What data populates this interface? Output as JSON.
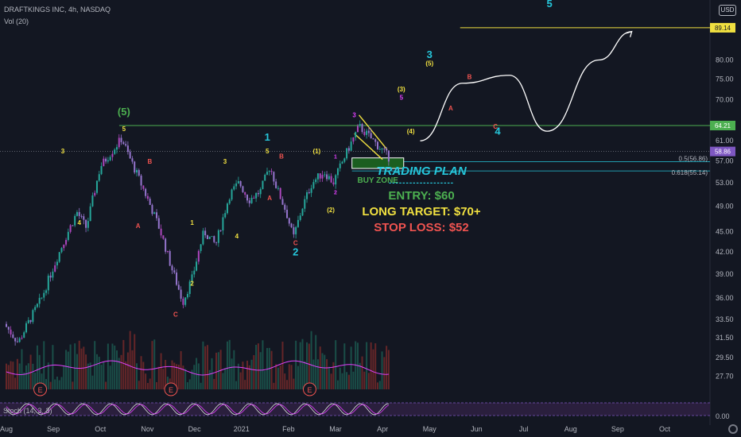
{
  "header": {
    "title": "DRAFTKINGS INC, 4h, NASDAQ",
    "volume_label": "Vol (20)",
    "currency": "USD"
  },
  "chart_data": {
    "type": "candlestick",
    "title": "DRAFTKINGS INC, 4h, NASDAQ",
    "x_ticks": [
      "Aug",
      "Sep",
      "Oct",
      "Nov",
      "Dec",
      "2021",
      "Feb",
      "Mar",
      "Apr",
      "May",
      "Jun",
      "Jul",
      "Aug",
      "Sep",
      "Oct"
    ],
    "y_ticks": [
      27.7,
      29.5,
      31.5,
      33.5,
      36.0,
      39.0,
      42.0,
      45.0,
      49.0,
      53.0,
      57.0,
      61.0,
      70.0,
      75.0,
      80.0
    ],
    "y_tick_labels": [
      "27.70",
      "29.50",
      "31.50",
      "33.50",
      "36.00",
      "39.00",
      "42.00",
      "45.00",
      "49.00",
      "53.00",
      "57.00",
      "61.00",
      "70.00",
      "75.00",
      "80.00"
    ],
    "price_path": [
      {
        "month": 0.0,
        "price": 33.0
      },
      {
        "month": 0.3,
        "price": 31.0
      },
      {
        "month": 0.8,
        "price": 36.0
      },
      {
        "month": 1.3,
        "price": 44.0
      },
      {
        "month": 1.55,
        "price": 48.0
      },
      {
        "month": 1.75,
        "price": 45.5
      },
      {
        "month": 2.05,
        "price": 56.0
      },
      {
        "month": 2.3,
        "price": 59.0
      },
      {
        "month": 2.5,
        "price": 61.5
      },
      {
        "month": 2.65,
        "price": 58.0
      },
      {
        "month": 2.9,
        "price": 53.0
      },
      {
        "month": 3.3,
        "price": 45.5
      },
      {
        "month": 3.55,
        "price": 40.0
      },
      {
        "month": 3.8,
        "price": 35.5
      },
      {
        "month": 4.0,
        "price": 38.5
      },
      {
        "month": 4.25,
        "price": 45.0
      },
      {
        "month": 4.5,
        "price": 43.0
      },
      {
        "month": 4.8,
        "price": 51.0
      },
      {
        "month": 5.0,
        "price": 53.0
      },
      {
        "month": 5.2,
        "price": 50.0
      },
      {
        "month": 5.45,
        "price": 51.5
      },
      {
        "month": 5.65,
        "price": 56.0
      },
      {
        "month": 5.8,
        "price": 52.0
      },
      {
        "month": 6.0,
        "price": 48.0
      },
      {
        "month": 6.15,
        "price": 44.0
      },
      {
        "month": 6.35,
        "price": 49.0
      },
      {
        "month": 6.55,
        "price": 53.0
      },
      {
        "month": 6.8,
        "price": 55.0
      },
      {
        "month": 7.0,
        "price": 53.0
      },
      {
        "month": 7.3,
        "price": 59.0
      },
      {
        "month": 7.55,
        "price": 64.0
      },
      {
        "month": 7.85,
        "price": 61.0
      },
      {
        "month": 8.2,
        "price": 57.5
      }
    ],
    "projection_path": [
      {
        "month": 8.8,
        "price": 61.0
      },
      {
        "month": 9.7,
        "price": 74.0
      },
      {
        "month": 10.7,
        "price": 76.0
      },
      {
        "month": 11.5,
        "price": 63.0
      },
      {
        "month": 12.6,
        "price": 80.0
      },
      {
        "month": 13.3,
        "price": 88.0
      }
    ],
    "price_lines": [
      {
        "price": 89.14,
        "label": "89.14",
        "color": "#f0e040"
      },
      {
        "price": 64.21,
        "label": "64.21",
        "color": "#4caf50"
      },
      {
        "price": 58.86,
        "label": "58.86",
        "color": "#7e57c2"
      }
    ],
    "fib_levels": [
      {
        "price": 56.86,
        "label": "0.5(56.86)"
      },
      {
        "price": 55.14,
        "label": "0.618(55.14)"
      }
    ],
    "buy_zone": {
      "label": "BUY ZONE",
      "price_top": 57.6,
      "price_bottom": 55.6,
      "month_start": 7.35,
      "month_end": 8.45
    },
    "wave_labels": [
      {
        "text": "(5)",
        "month": 2.5,
        "price": 66.5,
        "color": "#4caf50",
        "size": 13
      },
      {
        "text": "5",
        "month": 2.5,
        "price": 63.0,
        "color": "#f0e040",
        "size": 8
      },
      {
        "text": "3",
        "month": 1.2,
        "price": 58.5,
        "color": "#f0e040",
        "size": 8
      },
      {
        "text": "4",
        "month": 1.55,
        "price": 46.0,
        "color": "#f0e040",
        "size": 8
      },
      {
        "text": "B",
        "month": 3.05,
        "price": 56.5,
        "color": "#ef5350",
        "size": 8
      },
      {
        "text": "A",
        "month": 2.8,
        "price": 45.5,
        "color": "#ef5350",
        "size": 8
      },
      {
        "text": "C",
        "month": 3.6,
        "price": 33.8,
        "color": "#ef5350",
        "size": 8
      },
      {
        "text": "1",
        "month": 3.95,
        "price": 46.0,
        "color": "#f0e040",
        "size": 8
      },
      {
        "text": "2",
        "month": 3.95,
        "price": 37.5,
        "color": "#f0e040",
        "size": 8
      },
      {
        "text": "3",
        "month": 4.65,
        "price": 56.5,
        "color": "#f0e040",
        "size": 8
      },
      {
        "text": "4",
        "month": 4.9,
        "price": 44.0,
        "color": "#f0e040",
        "size": 8
      },
      {
        "text": "1",
        "month": 5.55,
        "price": 61.0,
        "color": "#26c6da",
        "size": 13
      },
      {
        "text": "5",
        "month": 5.55,
        "price": 58.5,
        "color": "#f0e040",
        "size": 8
      },
      {
        "text": "B",
        "month": 5.85,
        "price": 57.5,
        "color": "#ef5350",
        "size": 8
      },
      {
        "text": "A",
        "month": 5.6,
        "price": 50.0,
        "color": "#ef5350",
        "size": 8
      },
      {
        "text": "C",
        "month": 6.15,
        "price": 43.0,
        "color": "#ef5350",
        "size": 8
      },
      {
        "text": "2",
        "month": 6.15,
        "price": 41.5,
        "color": "#26c6da",
        "size": 13
      },
      {
        "text": "(1)",
        "month": 6.6,
        "price": 58.5,
        "color": "#f0e040",
        "size": 8
      },
      {
        "text": "(2)",
        "month": 6.9,
        "price": 48.0,
        "color": "#f0e040",
        "size": 8
      },
      {
        "text": "1",
        "month": 7.0,
        "price": 57.5,
        "color": "#e040fb",
        "size": 7
      },
      {
        "text": "2",
        "month": 7.0,
        "price": 51.0,
        "color": "#e040fb",
        "size": 7
      },
      {
        "text": "3",
        "month": 7.4,
        "price": 66.0,
        "color": "#e040fb",
        "size": 8
      },
      {
        "text": "(3)",
        "month": 8.4,
        "price": 72.0,
        "color": "#f0e040",
        "size": 8
      },
      {
        "text": "5",
        "month": 8.4,
        "price": 70.0,
        "color": "#e040fb",
        "size": 8
      },
      {
        "text": "(4)",
        "month": 8.6,
        "price": 62.5,
        "color": "#f0e040",
        "size": 8
      },
      {
        "text": "3",
        "month": 9.0,
        "price": 80.5,
        "color": "#26c6da",
        "size": 13
      },
      {
        "text": "(5)",
        "month": 9.0,
        "price": 78.5,
        "color": "#f0e040",
        "size": 8
      },
      {
        "text": "B",
        "month": 9.85,
        "price": 75.0,
        "color": "#ef5350",
        "size": 8
      },
      {
        "text": "A",
        "month": 9.45,
        "price": 67.5,
        "color": "#ef5350",
        "size": 8
      },
      {
        "text": "C",
        "month": 10.4,
        "price": 63.5,
        "color": "#ef5350",
        "size": 8
      },
      {
        "text": "4",
        "month": 10.45,
        "price": 62.3,
        "color": "#26c6da",
        "size": 13
      },
      {
        "text": "5",
        "month": 11.55,
        "price": 95.5,
        "color": "#26c6da",
        "size": 13
      }
    ],
    "earnings_markers": [
      {
        "label": "E",
        "month": 0.72
      },
      {
        "label": "E",
        "month": 3.5
      },
      {
        "label": "E",
        "month": 6.45
      }
    ],
    "volume_indicator": "Vol (20)",
    "oscillator_label": "Stoch (14, 3, 3)",
    "oscillator_tick_label": "0.00"
  },
  "trading_plan": {
    "title": "TRADING PLAN",
    "dashes": "-------------------",
    "entry": "ENTRY: $60",
    "target": "LONG TARGET: $70+",
    "stop": "STOP LOSS: $52"
  },
  "colors": {
    "background": "#131722",
    "cyan": "#26c6da",
    "green": "#4caf50",
    "yellow": "#f0e040",
    "red": "#ef5350",
    "purple": "#7e57c2"
  }
}
